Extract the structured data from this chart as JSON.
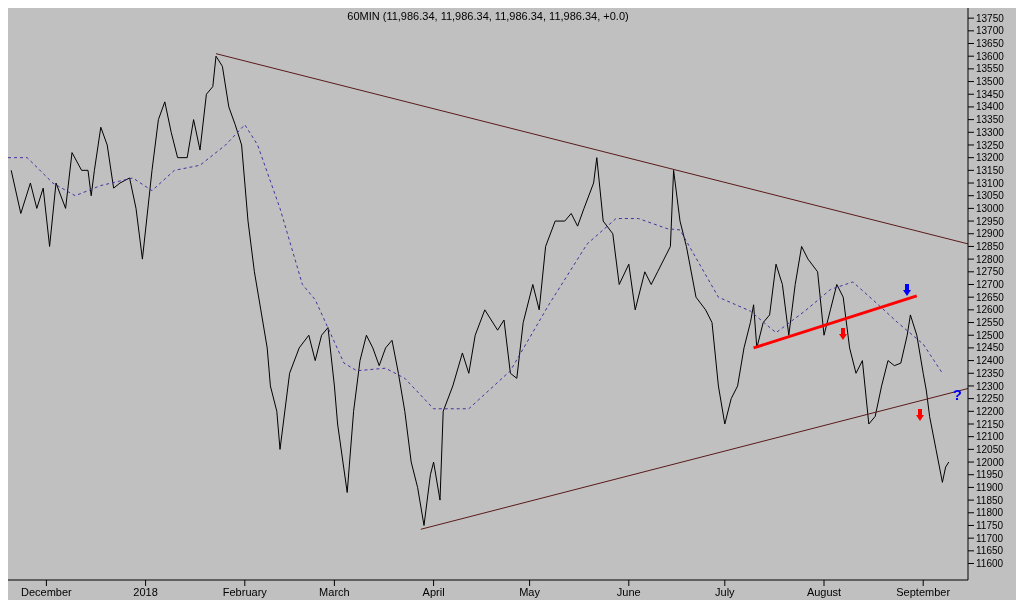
{
  "chart_data": {
    "type": "line",
    "title": "60MIN (11,986.34, 11,986.34, 11,986.34, 11,986.34, +0.0)",
    "xlim": [
      "2017-11-19",
      "2018-09-15"
    ],
    "xticks": [
      {
        "value": "2017-12-01",
        "label": "December"
      },
      {
        "value": "2018-01-01",
        "label": "2018"
      },
      {
        "value": "2018-02-01",
        "label": "February"
      },
      {
        "value": "2018-03-01",
        "label": "March"
      },
      {
        "value": "2018-04-01",
        "label": "April"
      },
      {
        "value": "2018-05-01",
        "label": "May"
      },
      {
        "value": "2018-06-01",
        "label": "June"
      },
      {
        "value": "2018-07-01",
        "label": "July"
      },
      {
        "value": "2018-08-01",
        "label": "August"
      },
      {
        "value": "2018-09-01",
        "label": "September"
      }
    ],
    "ylim": [
      11535,
      13790
    ],
    "yticks": [
      11600,
      11650,
      11700,
      11750,
      11800,
      11850,
      11900,
      11950,
      12000,
      12050,
      12100,
      12150,
      12200,
      12250,
      12300,
      12350,
      12400,
      12450,
      12500,
      12550,
      12600,
      12650,
      12700,
      12750,
      12800,
      12850,
      12900,
      12950,
      13000,
      13050,
      13100,
      13150,
      13200,
      13250,
      13300,
      13350,
      13400,
      13450,
      13500,
      13550,
      13600,
      13650,
      13700,
      13750
    ],
    "marker": "none",
    "annotations": [
      "?"
    ],
    "series": [
      {
        "color": "#000000",
        "line_style": "solid",
        "x": [
          "2017-11-20",
          "2017-11-23",
          "2017-11-26",
          "2017-11-28",
          "2017-11-30",
          "2017-12-02",
          "2017-12-04",
          "2017-12-07",
          "2017-12-09",
          "2017-12-12",
          "2017-12-14",
          "2017-12-15",
          "2017-12-16",
          "2017-12-18",
          "2017-12-20",
          "2017-12-22",
          "2017-12-24",
          "2017-12-27",
          "2017-12-29",
          "2017-12-31",
          "2018-01-03",
          "2018-01-05",
          "2018-01-07",
          "2018-01-09",
          "2018-01-11",
          "2018-01-14",
          "2018-01-16",
          "2018-01-18",
          "2018-01-20",
          "2018-01-22",
          "2018-01-23",
          "2018-01-25",
          "2018-01-27",
          "2018-01-29",
          "2018-01-31",
          "2018-02-02",
          "2018-02-04",
          "2018-02-06",
          "2018-02-08",
          "2018-02-09",
          "2018-02-11",
          "2018-02-12",
          "2018-02-15",
          "2018-02-18",
          "2018-02-21",
          "2018-02-23",
          "2018-02-25",
          "2018-02-27",
          "2018-03-01",
          "2018-03-02",
          "2018-03-05",
          "2018-03-07",
          "2018-03-09",
          "2018-03-11",
          "2018-03-13",
          "2018-03-15",
          "2018-03-17",
          "2018-03-19",
          "2018-03-21",
          "2018-03-23",
          "2018-03-25",
          "2018-03-27",
          "2018-03-29",
          "2018-03-31",
          "2018-04-01",
          "2018-04-03",
          "2018-04-04",
          "2018-04-07",
          "2018-04-10",
          "2018-04-12",
          "2018-04-14",
          "2018-04-17",
          "2018-04-19",
          "2018-04-21",
          "2018-04-23",
          "2018-04-25",
          "2018-04-27",
          "2018-04-29",
          "2018-05-02",
          "2018-05-04",
          "2018-05-06",
          "2018-05-09",
          "2018-05-12",
          "2018-05-14",
          "2018-05-16",
          "2018-05-18",
          "2018-05-21",
          "2018-05-22",
          "2018-05-24",
          "2018-05-27",
          "2018-05-29",
          "2018-06-01",
          "2018-06-03",
          "2018-06-06",
          "2018-06-08",
          "2018-06-10",
          "2018-06-12",
          "2018-06-14",
          "2018-06-15",
          "2018-06-17",
          "2018-06-19",
          "2018-06-22",
          "2018-06-25",
          "2018-06-27",
          "2018-06-29",
          "2018-07-01",
          "2018-07-03",
          "2018-07-05",
          "2018-07-07",
          "2018-07-09",
          "2018-07-10",
          "2018-07-11",
          "2018-07-13",
          "2018-07-15",
          "2018-07-17",
          "2018-07-19",
          "2018-07-21",
          "2018-07-23",
          "2018-07-25",
          "2018-07-27",
          "2018-07-30",
          "2018-08-01",
          "2018-08-03",
          "2018-08-05",
          "2018-08-07",
          "2018-08-09",
          "2018-08-11",
          "2018-08-13",
          "2018-08-15",
          "2018-08-17",
          "2018-08-19",
          "2018-08-21",
          "2018-08-23",
          "2018-08-25",
          "2018-08-27",
          "2018-08-28",
          "2018-08-30",
          "2018-09-01",
          "2018-09-02",
          "2018-09-03",
          "2018-09-05",
          "2018-09-07",
          "2018-09-08",
          "2018-09-09"
        ],
        "values": [
          13150,
          12980,
          13100,
          13000,
          13080,
          12850,
          13100,
          13000,
          13220,
          13150,
          13150,
          13050,
          13150,
          13320,
          13250,
          13080,
          13100,
          13120,
          13000,
          12800,
          13150,
          13350,
          13420,
          13300,
          13200,
          13200,
          13350,
          13230,
          13450,
          13480,
          13600,
          13560,
          13400,
          13330,
          13250,
          12950,
          12750,
          12600,
          12450,
          12300,
          12200,
          12050,
          12350,
          12450,
          12500,
          12400,
          12500,
          12530,
          12300,
          12150,
          11880,
          12200,
          12400,
          12500,
          12450,
          12380,
          12450,
          12480,
          12350,
          12200,
          12000,
          11900,
          11750,
          11950,
          12000,
          11850,
          12200,
          12300,
          12430,
          12350,
          12500,
          12600,
          12560,
          12520,
          12560,
          12350,
          12330,
          12550,
          12700,
          12600,
          12850,
          12950,
          12950,
          12980,
          12930,
          13000,
          13100,
          13200,
          12950,
          12900,
          12700,
          12780,
          12600,
          12750,
          12700,
          12750,
          12800,
          12850,
          13150,
          12950,
          12850,
          12650,
          12600,
          12550,
          12300,
          12150,
          12250,
          12300,
          12450,
          12550,
          12620,
          12450,
          12550,
          12580,
          12780,
          12700,
          12500,
          12700,
          12850,
          12800,
          12750,
          12500,
          12600,
          12700,
          12650,
          12450,
          12350,
          12400,
          12150,
          12180,
          12300,
          12400,
          12380,
          12390,
          12500,
          12580,
          12500,
          12350,
          12280,
          12180,
          12050,
          11920,
          11980,
          12000
        ]
      },
      {
        "color": "#4b2fa0",
        "line_style": "dashed",
        "x": [
          "2017-11-19",
          "2017-11-25",
          "2017-12-03",
          "2017-12-10",
          "2017-12-18",
          "2017-12-28",
          "2018-01-03",
          "2018-01-10",
          "2018-01-18",
          "2018-01-26",
          "2018-02-01",
          "2018-02-05",
          "2018-02-12",
          "2018-02-19",
          "2018-02-23",
          "2018-03-04",
          "2018-03-08",
          "2018-03-17",
          "2018-03-23",
          "2018-04-01",
          "2018-04-12",
          "2018-04-25",
          "2018-05-07",
          "2018-05-19",
          "2018-05-28",
          "2018-06-04",
          "2018-06-13",
          "2018-06-17",
          "2018-06-29",
          "2018-07-09",
          "2018-07-17",
          "2018-07-26",
          "2018-08-03",
          "2018-08-10",
          "2018-08-18",
          "2018-08-24",
          "2018-09-01",
          "2018-09-07"
        ],
        "values": [
          13200,
          13200,
          13100,
          13050,
          13090,
          13120,
          13070,
          13150,
          13170,
          13250,
          13330,
          13250,
          13000,
          12700,
          12640,
          12390,
          12360,
          12370,
          12330,
          12210,
          12210,
          12360,
          12620,
          12860,
          12960,
          12960,
          12920,
          12915,
          12650,
          12595,
          12510,
          12595,
          12680,
          12710,
          12620,
          12550,
          12465,
          12350
        ]
      },
      {
        "color": "#5a1a1a",
        "line_style": "solid",
        "x": [
          "2018-01-23",
          "2018-09-15"
        ],
        "values": [
          13610,
          12860
        ]
      },
      {
        "color": "#5a1a1a",
        "line_style": "solid",
        "x": [
          "2018-03-28",
          "2018-09-15"
        ],
        "values": [
          11735,
          12290
        ]
      },
      {
        "color": "#ff0000",
        "line_style": "solid",
        "x": [
          "2018-07-10",
          "2018-08-30"
        ],
        "values": [
          12450,
          12655
        ]
      }
    ]
  }
}
